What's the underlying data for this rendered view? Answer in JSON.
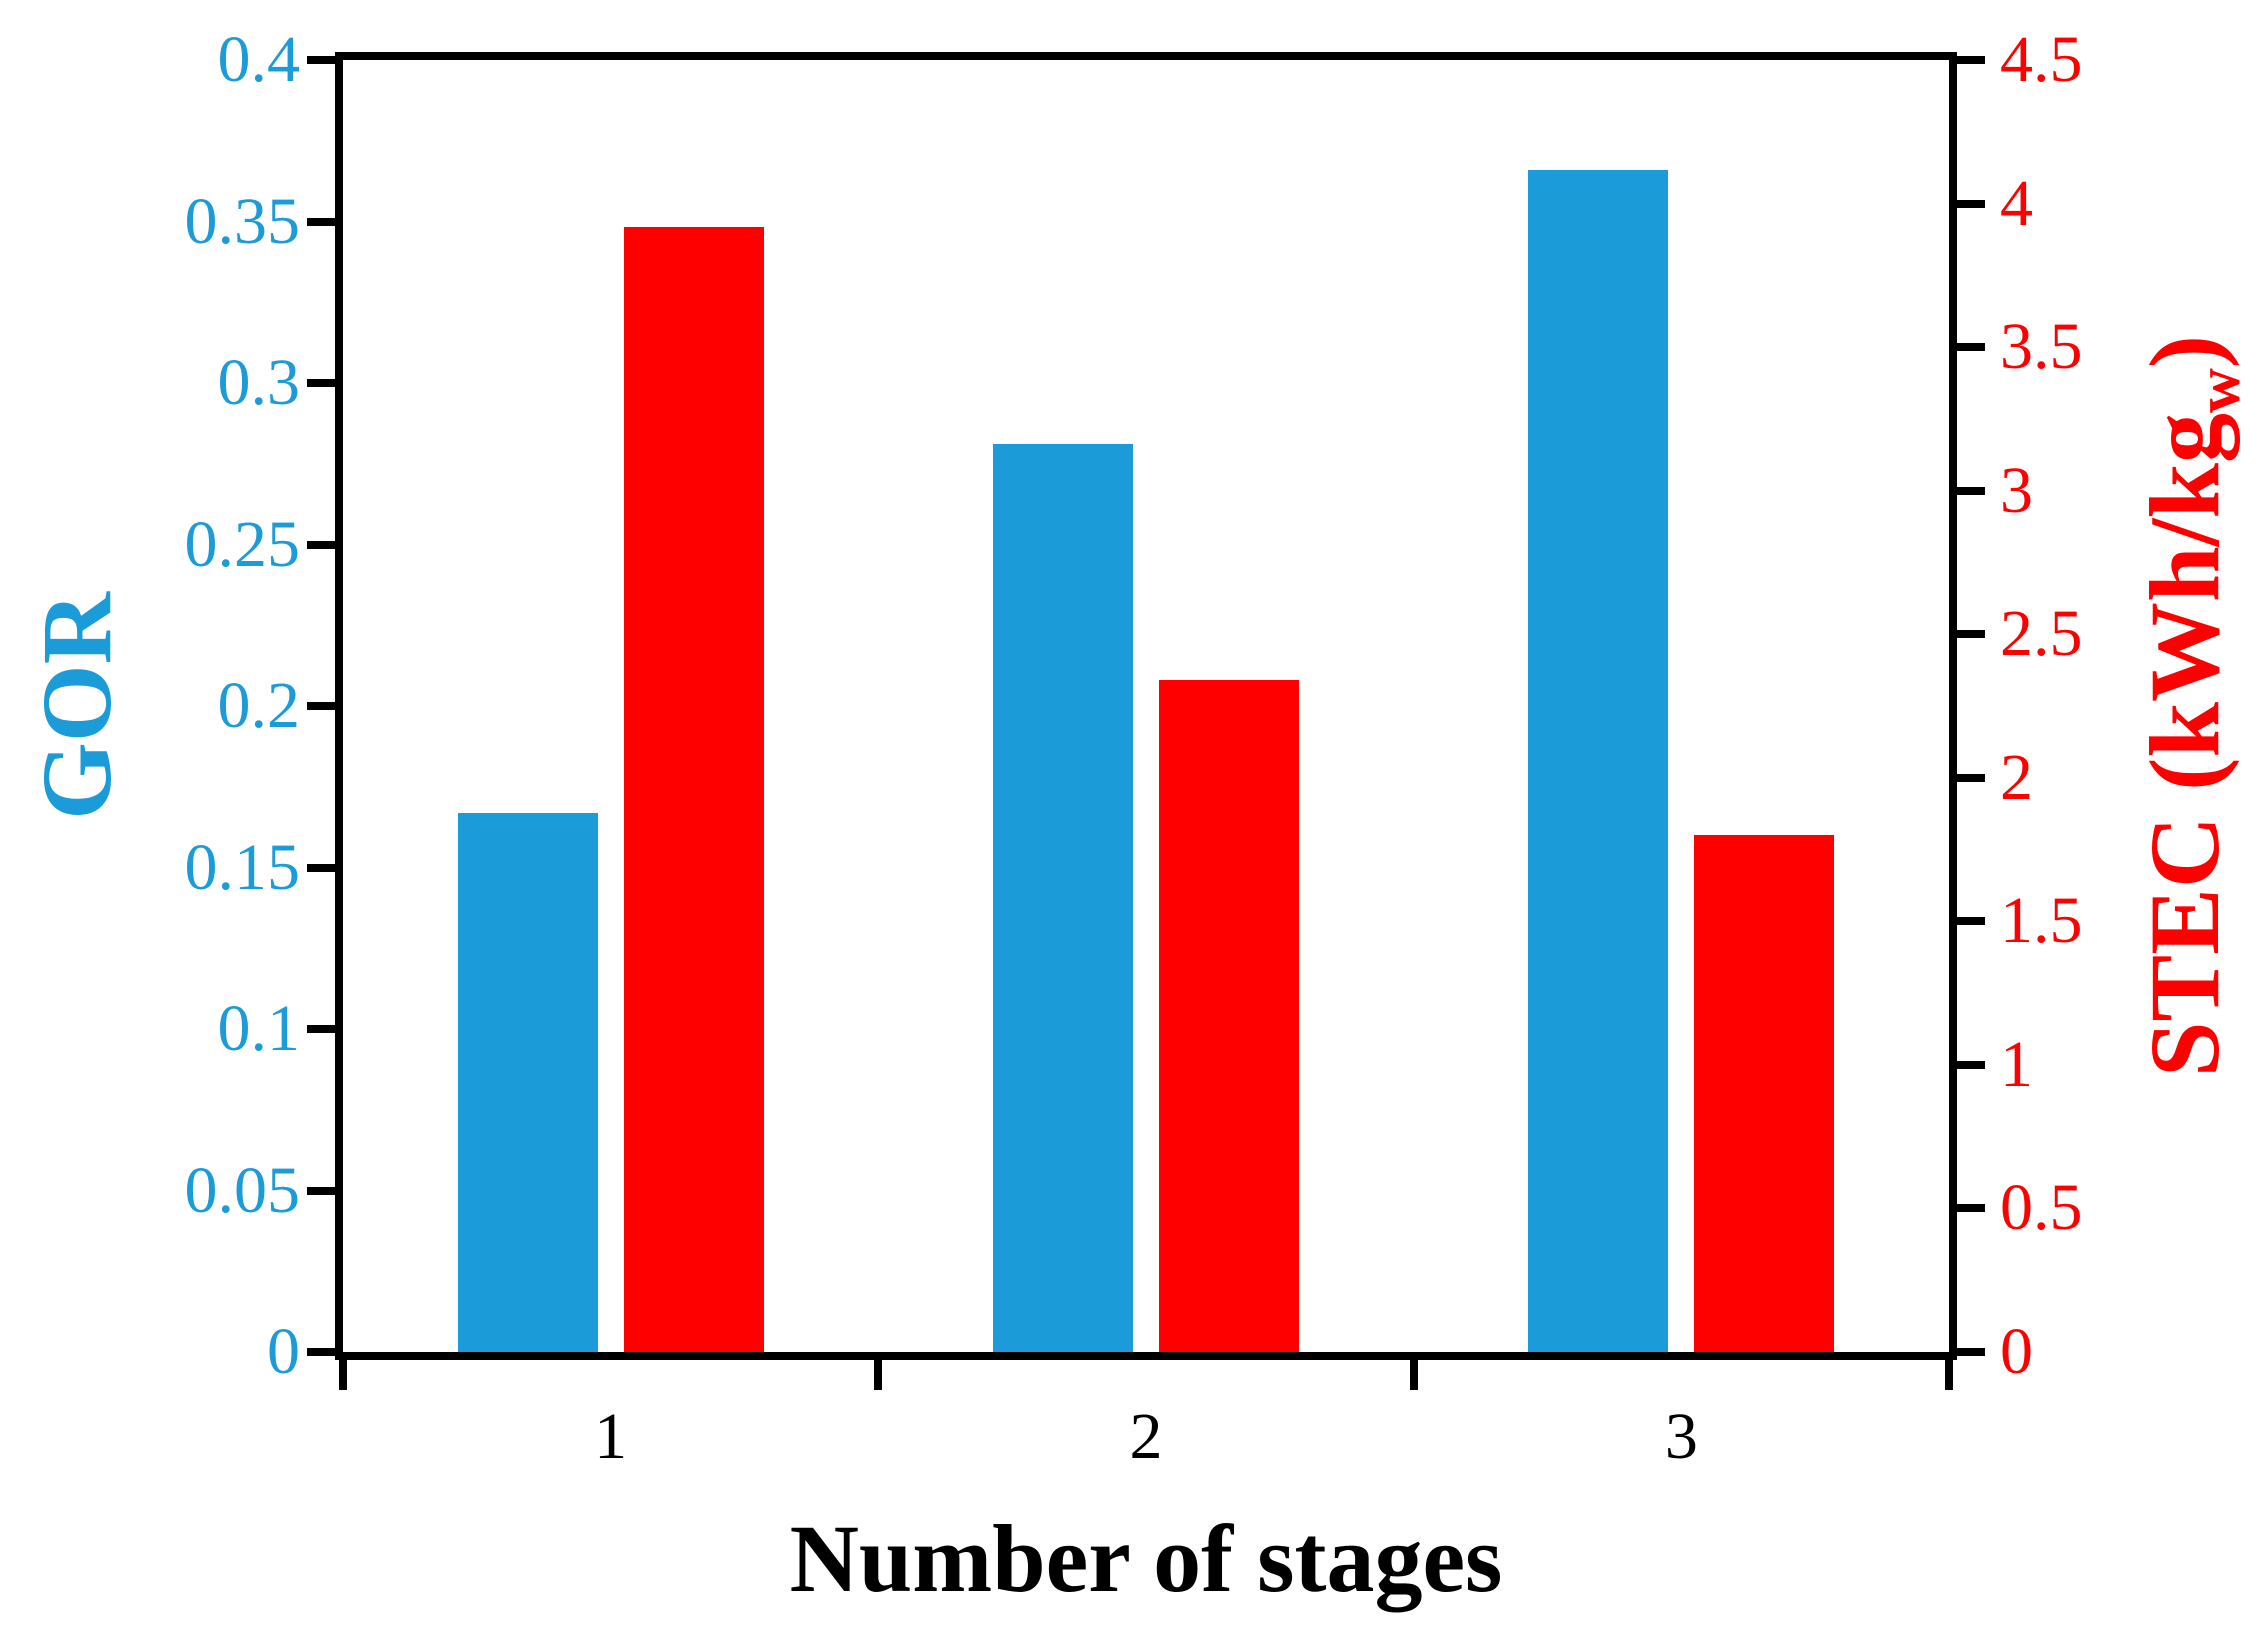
{
  "chart_data": {
    "type": "bar",
    "title": "",
    "categories": [
      "1",
      "2",
      "3"
    ],
    "xlabel": "Number of stages",
    "grid": false,
    "legend": "none",
    "background_color": "#ffffff",
    "frame_color": "#000000",
    "series": [
      {
        "name": "GOR",
        "axis": "left",
        "color": "#1C9BD9",
        "values": [
          0.167,
          0.281,
          0.366
        ]
      },
      {
        "name": "STEC (kWh/kgw)",
        "axis": "right",
        "color": "#FF0000",
        "values": [
          3.92,
          2.34,
          1.8
        ]
      }
    ],
    "axes": {
      "left": {
        "title": "GOR",
        "color": "#1C9BD9",
        "min": 0,
        "max": 0.4,
        "tick_values": [
          0.4,
          0.35,
          0.3,
          0.25,
          0.2,
          0.15,
          0.1,
          0.05,
          0
        ],
        "tick_labels": [
          "0.4",
          "0.35",
          "0.3",
          "0.25",
          "0.2",
          "0.15",
          "0.1",
          "0.05",
          "0"
        ]
      },
      "right": {
        "title_prefix": "STEC (kWh/kg",
        "title_sub": "w",
        "title_suffix": ")",
        "color": "#FF0000",
        "min": 0,
        "max": 4.5,
        "tick_values": [
          4.5,
          4,
          3.5,
          3,
          2.5,
          2,
          1.5,
          1,
          0.5,
          0
        ],
        "tick_labels": [
          "4.5",
          "4",
          "3.5",
          "3",
          "2.5",
          "2",
          "1.5",
          "1",
          "0.5",
          "0"
        ]
      },
      "bottom": {
        "tick_labels": [
          "1",
          "2",
          "3"
        ]
      }
    }
  }
}
